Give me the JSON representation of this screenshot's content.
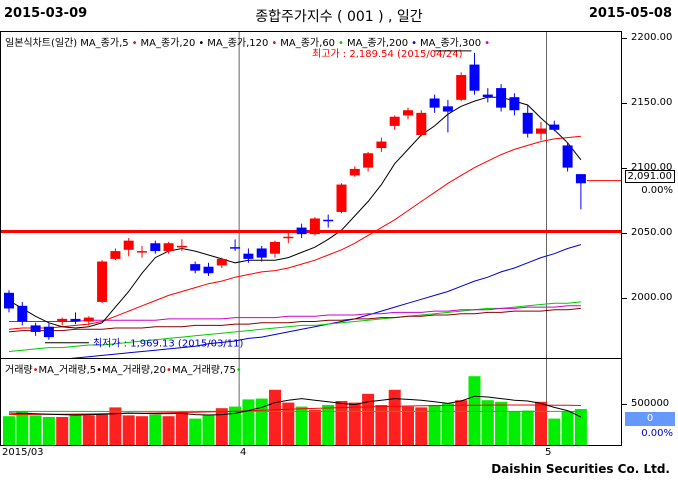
{
  "header": {
    "date_start": "2015-03-09",
    "title": "종합주가지수 ( 001 ) , 일간",
    "date_end": "2015-05-08"
  },
  "price_legend": [
    {
      "label": "일본식차트(일간)",
      "color": "#000000"
    },
    {
      "label": "MA_종가,5",
      "color": "#ff0000"
    },
    {
      "label": "MA_종가,20",
      "color": "#000000"
    },
    {
      "label": "MA_종가,120",
      "color": "#ff0000"
    },
    {
      "label": "MA_종가,60",
      "color": "#00cc00"
    },
    {
      "label": "MA_종가,200",
      "color": "#0000cc"
    },
    {
      "label": "MA_종가,300",
      "color": "#cc00cc"
    }
  ],
  "volume_legend": [
    {
      "label": "거래량",
      "color": "#ff0000"
    },
    {
      "label": "MA_거래량,5",
      "color": "#000000"
    },
    {
      "label": "MA_거래량,20",
      "color": "#ff0000"
    },
    {
      "label": "MA_거래량,75",
      "color": "#00cc00"
    }
  ],
  "annotations": {
    "high": "최고가 : 2,189.54 (2015/04/24)",
    "low": "최저가 : 1,969.13 (2015/03/11)"
  },
  "price_axis": {
    "labels": [
      "2200.00",
      "2150.00",
      "2100.00",
      "2050.00",
      "2000.00"
    ]
  },
  "current": {
    "price": "2,091.00",
    "change": "0.00%"
  },
  "volume_axis": {
    "labels": [
      "500000"
    ]
  },
  "volume_current": {
    "value": "0",
    "change": "0.00%"
  },
  "x_axis": {
    "labels": [
      "2015/03",
      "4",
      "5"
    ]
  },
  "footer": "Daishin Securities Co. Ltd.",
  "colors": {
    "up": "#ff0000",
    "down": "#0000ff",
    "support_line": "#ff0000",
    "vol_up": "#ff2020",
    "vol_down": "#00ee00"
  },
  "chart_data": {
    "type": "candlestick",
    "ylim": [
      1955,
      2205
    ],
    "support_level": 2052,
    "candles": [
      {
        "o": 2005,
        "h": 2007,
        "l": 1990,
        "c": 1993
      },
      {
        "o": 1995,
        "h": 1998,
        "l": 1980,
        "c": 1983
      },
      {
        "o": 1980,
        "h": 1982,
        "l": 1972,
        "c": 1975
      },
      {
        "o": 1979,
        "h": 1982,
        "l": 1969,
        "c": 1971
      },
      {
        "o": 1983,
        "h": 1986,
        "l": 1980,
        "c": 1985
      },
      {
        "o": 1985,
        "h": 1990,
        "l": 1981,
        "c": 1983
      },
      {
        "o": 1983,
        "h": 1987,
        "l": 1980,
        "c": 1986
      },
      {
        "o": 1998,
        "h": 2030,
        "l": 1997,
        "c": 2029
      },
      {
        "o": 2031,
        "h": 2039,
        "l": 2030,
        "c": 2037
      },
      {
        "o": 2038,
        "h": 2047,
        "l": 2033,
        "c": 2045
      },
      {
        "o": 2036,
        "h": 2041,
        "l": 2032,
        "c": 2037
      },
      {
        "o": 2043,
        "h": 2045,
        "l": 2035,
        "c": 2037
      },
      {
        "o": 2037,
        "h": 2044,
        "l": 2035,
        "c": 2043
      },
      {
        "o": 2040,
        "h": 2046,
        "l": 2037,
        "c": 2041
      },
      {
        "o": 2027,
        "h": 2029,
        "l": 2020,
        "c": 2022
      },
      {
        "o": 2025,
        "h": 2028,
        "l": 2018,
        "c": 2020
      },
      {
        "o": 2026,
        "h": 2032,
        "l": 2024,
        "c": 2031
      },
      {
        "o": 2040,
        "h": 2046,
        "l": 2037,
        "c": 2039
      },
      {
        "o": 2035,
        "h": 2039,
        "l": 2028,
        "c": 2031
      },
      {
        "o": 2039,
        "h": 2041,
        "l": 2029,
        "c": 2032
      },
      {
        "o": 2035,
        "h": 2045,
        "l": 2032,
        "c": 2044
      },
      {
        "o": 2047,
        "h": 2052,
        "l": 2043,
        "c": 2048
      },
      {
        "o": 2055,
        "h": 2058,
        "l": 2047,
        "c": 2050
      },
      {
        "o": 2050,
        "h": 2063,
        "l": 2049,
        "c": 2062
      },
      {
        "o": 2061,
        "h": 2065,
        "l": 2055,
        "c": 2060
      },
      {
        "o": 2067,
        "h": 2089,
        "l": 2066,
        "c": 2088
      },
      {
        "o": 2095,
        "h": 2102,
        "l": 2094,
        "c": 2100
      },
      {
        "o": 2101,
        "h": 2113,
        "l": 2098,
        "c": 2112
      },
      {
        "o": 2116,
        "h": 2124,
        "l": 2113,
        "c": 2121
      },
      {
        "o": 2133,
        "h": 2141,
        "l": 2130,
        "c": 2140
      },
      {
        "o": 2141,
        "h": 2147,
        "l": 2138,
        "c": 2145
      },
      {
        "o": 2126,
        "h": 2145,
        "l": 2125,
        "c": 2143
      },
      {
        "o": 2154,
        "h": 2157,
        "l": 2143,
        "c": 2147
      },
      {
        "o": 2148,
        "h": 2153,
        "l": 2128,
        "c": 2144
      },
      {
        "o": 2153,
        "h": 2174,
        "l": 2152,
        "c": 2172
      },
      {
        "o": 2180,
        "h": 2189,
        "l": 2157,
        "c": 2160
      },
      {
        "o": 2157,
        "h": 2162,
        "l": 2151,
        "c": 2155
      },
      {
        "o": 2162,
        "h": 2165,
        "l": 2144,
        "c": 2147
      },
      {
        "o": 2155,
        "h": 2158,
        "l": 2141,
        "c": 2145
      },
      {
        "o": 2143,
        "h": 2149,
        "l": 2124,
        "c": 2127
      },
      {
        "o": 2127,
        "h": 2136,
        "l": 2122,
        "c": 2131
      },
      {
        "o": 2134,
        "h": 2137,
        "l": 2129,
        "c": 2130
      },
      {
        "o": 2118,
        "h": 2120,
        "l": 2098,
        "c": 2101
      },
      {
        "o": 2096,
        "h": 2096,
        "l": 2069,
        "c": 2089
      }
    ],
    "ma5": [
      1999,
      1993,
      1987,
      1982,
      1979,
      1978,
      1979,
      1982,
      1994,
      2006,
      2020,
      2032,
      2037,
      2039,
      2037,
      2034,
      2031,
      2028,
      2030,
      2030,
      2030,
      2032,
      2036,
      2040,
      2046,
      2053,
      2064,
      2075,
      2088,
      2104,
      2115,
      2126,
      2133,
      2142,
      2148,
      2152,
      2155,
      2155,
      2152,
      2149,
      2139,
      2130,
      2120,
      2107
    ],
    "ma20": [
      1977,
      1978,
      1978,
      1978,
      1979,
      1980,
      1981,
      1983,
      1987,
      1991,
      1995,
      1999,
      2003,
      2006,
      2009,
      2012,
      2014,
      2017,
      2019,
      2021,
      2022,
      2024,
      2027,
      2030,
      2034,
      2038,
      2043,
      2049,
      2055,
      2061,
      2068,
      2075,
      2082,
      2089,
      2095,
      2101,
      2106,
      2111,
      2115,
      2118,
      2121,
      2123,
      2124,
      2125
    ],
    "ma60": [
      1960,
      1961,
      1962,
      1963,
      1963,
      1964,
      1965,
      1965,
      1966,
      1967,
      1968,
      1969,
      1970,
      1971,
      1972,
      1973,
      1974,
      1975,
      1976,
      1977,
      1978,
      1979,
      1980,
      1980,
      1981,
      1982,
      1983,
      1984,
      1985,
      1986,
      1987,
      1988,
      1989,
      1990,
      1991,
      1992,
      1993,
      1993,
      1994,
      1995,
      1996,
      1997,
      1997,
      1998
    ],
    "ma120": [
      1975,
      1976,
      1976,
      1976,
      1976,
      1977,
      1977,
      1977,
      1978,
      1978,
      1978,
      1979,
      1979,
      1979,
      1980,
      1980,
      1980,
      1981,
      1981,
      1982,
      1982,
      1982,
      1983,
      1983,
      1984,
      1984,
      1985,
      1985,
      1986,
      1986,
      1987,
      1987,
      1988,
      1988,
      1989,
      1989,
      1990,
      1990,
      1991,
      1991,
      1991,
      1992,
      1992,
      1993
    ],
    "ma200": [
      1950,
      1951,
      1952,
      1953,
      1954,
      1955,
      1956,
      1957,
      1958,
      1959,
      1960,
      1961,
      1962,
      1963,
      1964,
      1966,
      1967,
      1968,
      1970,
      1971,
      1973,
      1975,
      1977,
      1979,
      1981,
      1983,
      1985,
      1988,
      1991,
      1994,
      1997,
      2000,
      2003,
      2006,
      2010,
      2014,
      2017,
      2021,
      2024,
      2028,
      2032,
      2035,
      2039,
      2042
    ],
    "ma300": [
      1983,
      1983,
      1983,
      1983,
      1983,
      1983,
      1984,
      1984,
      1984,
      1984,
      1984,
      1984,
      1985,
      1985,
      1985,
      1985,
      1985,
      1986,
      1986,
      1986,
      1986,
      1987,
      1987,
      1987,
      1988,
      1988,
      1988,
      1989,
      1989,
      1990,
      1990,
      1990,
      1991,
      1991,
      1992,
      1992,
      1992,
      1993,
      1993,
      1994,
      1994,
      1994,
      1995,
      1995
    ],
    "volume": {
      "ylim": [
        0,
        900000
      ],
      "values": [
        360000,
        420000,
        370000,
        350000,
        350000,
        380000,
        370000,
        380000,
        470000,
        370000,
        360000,
        380000,
        360000,
        410000,
        330000,
        380000,
        460000,
        480000,
        570000,
        580000,
        690000,
        530000,
        480000,
        440000,
        500000,
        550000,
        530000,
        640000,
        500000,
        690000,
        480000,
        470000,
        500000,
        520000,
        560000,
        860000,
        560000,
        540000,
        420000,
        430000,
        540000,
        330000,
        420000,
        450000
      ],
      "ma5": [
        400000,
        395000,
        390000,
        385000,
        380000,
        375000,
        378000,
        385000,
        390000,
        400000,
        395000,
        390000,
        392000,
        395000,
        380000,
        375000,
        380000,
        395000,
        430000,
        470000,
        530000,
        560000,
        580000,
        560000,
        540000,
        520000,
        505000,
        540000,
        560000,
        580000,
        570000,
        560000,
        540000,
        520000,
        550000,
        610000,
        600000,
        580000,
        560000,
        550000,
        520000,
        470000,
        430000,
        350000
      ],
      "ma20": [
        380000,
        382000,
        383000,
        384000,
        385000,
        386000,
        388000,
        390000,
        392000,
        395000,
        398000,
        400000,
        403000,
        407000,
        410000,
        414000,
        418000,
        422000,
        428000,
        434000,
        440000,
        446000,
        452000,
        458000,
        463000,
        468000,
        472000,
        476000,
        480000,
        484000,
        487000,
        490000,
        492000,
        494000,
        496000,
        498000,
        499000,
        500000,
        500000,
        500000,
        499000,
        498000,
        496000,
        494000
      ],
      "ma75": [
        420000,
        420000,
        420000,
        420000,
        420000,
        420000,
        420000,
        420000,
        420000,
        420000,
        420000,
        420000,
        420000,
        420000,
        420000,
        420000,
        420000,
        420000,
        420000,
        420000,
        420000,
        420000,
        420000,
        420000,
        420000,
        420000,
        420000,
        420000,
        420000,
        420000,
        420000,
        420000,
        420000,
        420000,
        420000,
        420000,
        420000,
        420000,
        420000,
        420000,
        420000,
        420000,
        420000,
        420000
      ]
    }
  }
}
